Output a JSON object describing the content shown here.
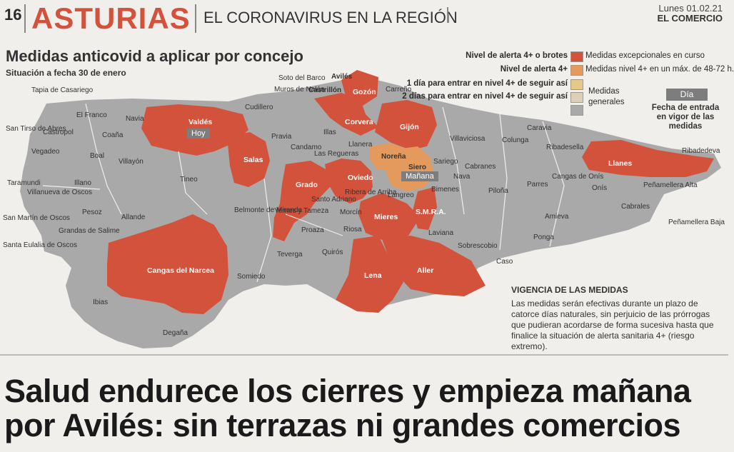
{
  "header": {
    "page_number": "16",
    "section": "ASTURIAS",
    "topic": "EL CORONAVIRUS EN LA REGIÓN",
    "date": "Lunes 01.02.21",
    "newspaper": "EL COMERCIO"
  },
  "map": {
    "title": "Medidas anticovid a aplicar por concejo",
    "subtitle": "Situación a fecha 30 de enero",
    "legend": [
      {
        "left": "Nivel de alerta 4+ o brotes",
        "color": "#d2523c",
        "right": "Medidas excepcionales en curso"
      },
      {
        "left": "Nivel de alerta 4+",
        "color": "#e39a5c",
        "right": "Medidas nivel 4+ en un máx. de 48-72 h."
      },
      {
        "left": "1 día para entrar en nivel 4+ de seguir así",
        "color": "#e6c98a",
        "right": ""
      },
      {
        "left": "2 días para entrar en nivel 4+ de seguir así",
        "color": "#dccfb5",
        "right": ""
      },
      {
        "left": "",
        "color": "#a9a9a9",
        "right": "Medidas generales"
      }
    ],
    "date_legend": {
      "label": "Día",
      "description": "Fecha de entrada en vigor de las medidas"
    },
    "date_tags": {
      "valdes": "Hoy",
      "siero": "Mañana"
    },
    "colors": {
      "red": "#d2523c",
      "orange": "#e39a5c",
      "gray": "#a9a9a9"
    },
    "red_concejos": [
      "Valdés",
      "Salas",
      "Grado",
      "Oviedo",
      "Gozón",
      "Corvera",
      "Gijón",
      "Mieres",
      "S.M.R.A.",
      "Lena",
      "Aller",
      "Llanes",
      "Cangas del Narcea"
    ],
    "orange_concejos": [
      "Noreña",
      "Siero"
    ],
    "gray_concejos": [
      "Tapia de Casariego",
      "San Tirso de Abres",
      "El Franco",
      "Navia",
      "Castropol",
      "Coaña",
      "Vegadeo",
      "Boal",
      "Villayón",
      "Taramundi",
      "Illano",
      "Tineo",
      "Villanueva de Oscos",
      "Pesoz",
      "Allande",
      "San Martín de Oscos",
      "Grandas de Salime",
      "Santa Eulalia de Oscos",
      "Ibias",
      "Degaña",
      "Soto del Barco",
      "Muros de Nalón",
      "Castrillón",
      "Avilés",
      "Carreño",
      "Cudillero",
      "Pravia",
      "Illas",
      "Candamo",
      "Llanera",
      "Las Regueras",
      "Belmonte de Miranda",
      "Yernes y Tameza",
      "Santo Adriano",
      "Ribera de Arriba",
      "Morcín",
      "Proaza",
      "Riosa",
      "Teverga",
      "Quirós",
      "Somiedo",
      "Villaviciosa",
      "Colunga",
      "Caravia",
      "Ribadesella",
      "Sariego",
      "Cabranes",
      "Nava",
      "Bimenes",
      "Langreo",
      "Laviana",
      "Piloña",
      "Parres",
      "Cangas de Onís",
      "Onís",
      "Amieva",
      "Ponga",
      "Sobrescobio",
      "Caso",
      "Ribadedeva",
      "Peñamellera Alta",
      "Peñamellera Baja",
      "Cabrales"
    ]
  },
  "vigencia": {
    "title": "VIGENCIA DE LAS MEDIDAS",
    "text": "Las medidas serán efectivas durante un plazo de catorce días naturales, sin perjuicio de las prórrogas que pudieran acordarse de forma sucesiva hasta que finalice la situación de alerta sanitaria 4+ (riesgo extremo)."
  },
  "headline": "Salud endurece los cierres y empieza mañana por Avilés: sin terrazas ni grandes comercios"
}
